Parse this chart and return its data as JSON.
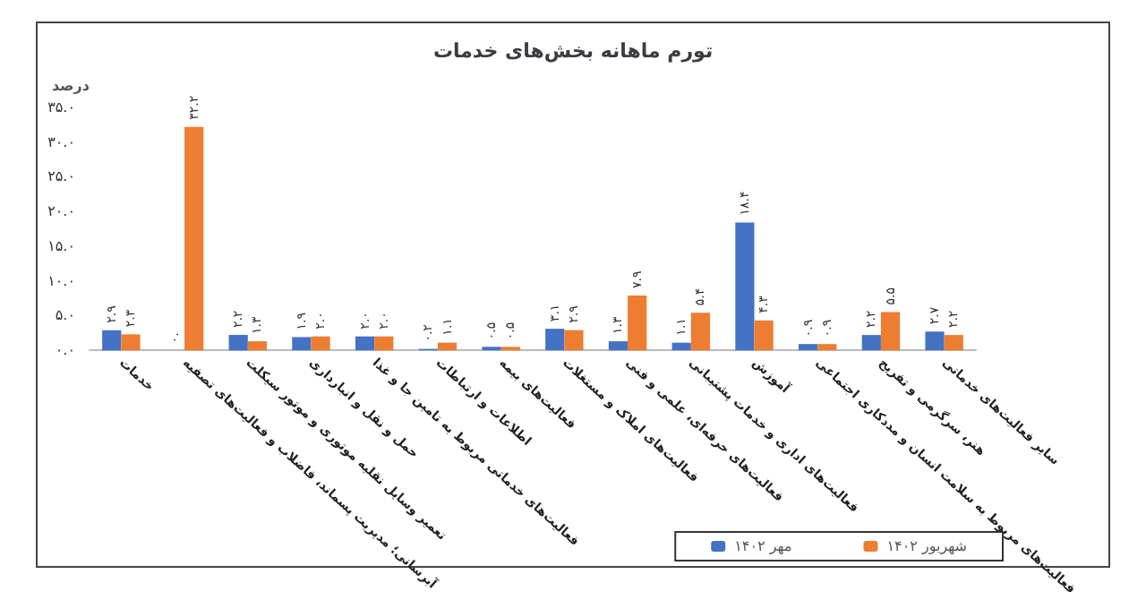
{
  "chart_data": {
    "type": "bar",
    "title": "تورم ماهانه بخش‌های خدمات",
    "ylabel": "درصد",
    "categories": [
      "خدمات",
      "آبرسانی؛ مدیریت پسماند، فاضلاب و فعالیت‌های تصفیه",
      "تعمیر وسایل نقلیه موتوری و موتور سیکلت",
      "حمل و نقل و انبارداری",
      "فعالیت‌های خدماتی مربوط به تامین جا و غذا",
      "اطلاعات و ارتباطات",
      "فعالیت‌های بیمه",
      "فعالیت‌های املاک و مستغلات",
      "فعالیت‌های حرفه‌ای، علمی و فنی",
      "فعالیت‌های اداری و خدمات پشتیبانی",
      "آموزش",
      "فعالیت‌های مربوط به سلامت انسان و مددکاری اجتماعی",
      "هنر، سرگرمی و تفریح",
      "سایر فعالیت‌های خدماتی"
    ],
    "series": [
      {
        "name": "مهر ۱۴۰۲",
        "color": "#4472c4",
        "values": [
          2.9,
          0,
          2.2,
          1.9,
          2.0,
          0.2,
          0.5,
          3.1,
          1.3,
          1.1,
          18.4,
          0.9,
          2.2,
          2.7
        ],
        "value_labels": [
          "۲.۹",
          "۰.",
          "۲.۲",
          "۱.۹",
          "۲.۰",
          "۰.۲",
          "۰.۵",
          "۳.۱",
          "۱.۳",
          "۱.۱",
          "۱۸.۴",
          "۰.۹",
          "۲.۲",
          "۲.۷"
        ]
      },
      {
        "name": "شهریور ۱۴۰۲",
        "color": "#ed7d31",
        "values": [
          2.3,
          32.2,
          1.3,
          2.0,
          2.0,
          1.1,
          0.5,
          2.9,
          7.9,
          5.4,
          4.3,
          0.9,
          5.5,
          2.2
        ],
        "value_labels": [
          "۲.۳",
          "۳۲.۲",
          "۱.۳",
          "۲.۰",
          "۲.۰",
          "۱.۱",
          "۰.۵",
          "۲.۹",
          "۷.۹",
          "۵.۴",
          "۴.۳",
          "۰.۹",
          "۵.۵",
          "۲.۲"
        ]
      }
    ],
    "ylim": [
      0,
      35
    ],
    "yticks": [
      {
        "value": 0,
        "label": "۰.۰"
      },
      {
        "value": 5,
        "label": "۵.۰"
      },
      {
        "value": 10,
        "label": "۱۰.۰"
      },
      {
        "value": 15,
        "label": "۱۵.۰"
      },
      {
        "value": 20,
        "label": "۲۰.۰"
      },
      {
        "value": 25,
        "label": "۲۵.۰"
      },
      {
        "value": 30,
        "label": "۳۰.۰"
      },
      {
        "value": 35,
        "label": "۳۵.۰"
      }
    ],
    "grid": false,
    "legend": "bottom right"
  }
}
